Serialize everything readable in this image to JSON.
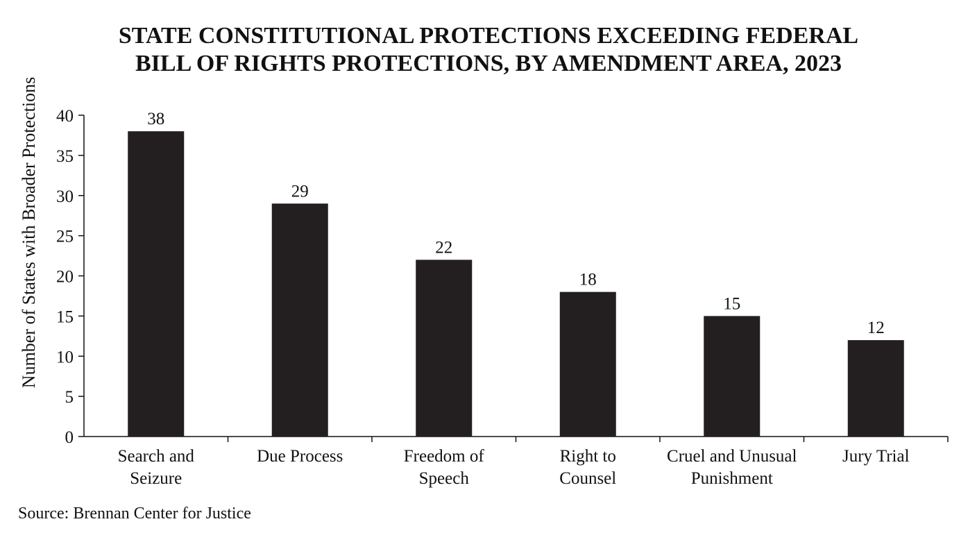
{
  "chart_data": {
    "type": "bar",
    "title_lines": [
      "STATE CONSTITUTIONAL PROTECTIONS EXCEEDING FEDERAL",
      "BILL OF RIGHTS PROTECTIONS, BY AMENDMENT AREA, 2023"
    ],
    "ylabel": "Number of States with Broader Protections",
    "xlabel": "",
    "categories": [
      [
        "Search and",
        "Seizure"
      ],
      [
        "Due Process"
      ],
      [
        "Freedom of",
        "Speech"
      ],
      [
        "Right to",
        "Counsel"
      ],
      [
        "Cruel and Unusual",
        "Punishment"
      ],
      [
        "Jury Trial"
      ]
    ],
    "values": [
      38,
      29,
      22,
      18,
      15,
      12
    ],
    "data_labels": [
      "38",
      "29",
      "22",
      "18",
      "15",
      "12"
    ],
    "ylim": [
      0,
      40
    ],
    "yticks": [
      0,
      5,
      10,
      15,
      20,
      25,
      30,
      35,
      40
    ],
    "grid": false,
    "bar_color": "#231f20",
    "source": "Source: Brennan Center for Justice"
  }
}
